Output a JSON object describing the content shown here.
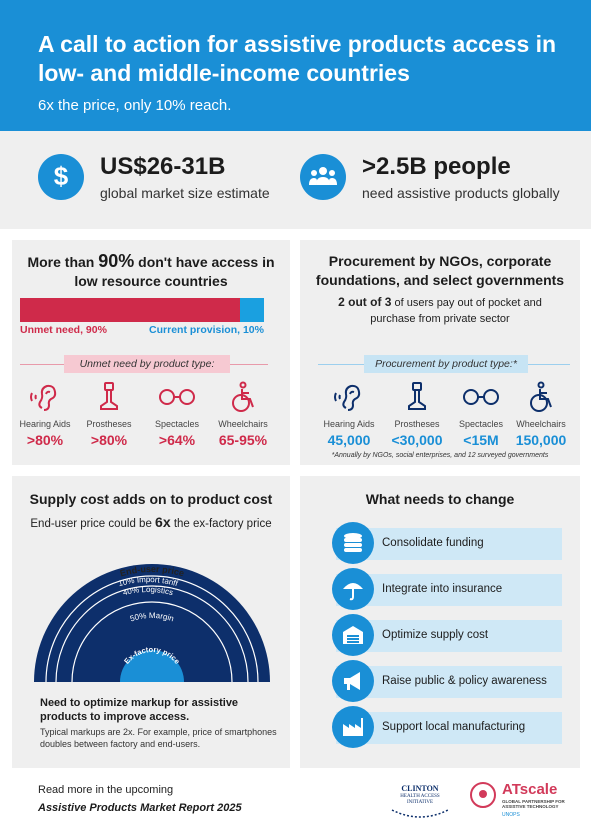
{
  "header": {
    "title": "A call to action for assistive products access in low- and middle-income countries",
    "subtitle": "6x the price, only 10% reach."
  },
  "stats": [
    {
      "icon": "dollar-icon",
      "value": "US$26-31B",
      "label": "global market size estimate"
    },
    {
      "icon": "people-icon",
      "value": ">2.5B people",
      "label": "need assistive products globally"
    }
  ],
  "access": {
    "title_pre": "More than ",
    "title_pct": "90%",
    "title_post": " don't have access in low resource countries",
    "unmet_fraction": 0.9,
    "unmet_label": "Unmet need, 90%",
    "current_label": "Current provision, 10%",
    "bytype_label": "Unmet need by product type:",
    "products": [
      {
        "name": "Hearing Aids",
        "value": ">80%",
        "icon": "ear-icon"
      },
      {
        "name": "Prostheses",
        "value": ">80%",
        "icon": "prosthesis-icon"
      },
      {
        "name": "Spectacles",
        "value": ">64%",
        "icon": "spectacles-icon"
      },
      {
        "name": "Wheelchairs",
        "value": "65-95%",
        "icon": "wheelchair-icon"
      }
    ]
  },
  "procurement": {
    "title": "Procurement by NGOs, corporate foundations, and select governments",
    "sub_bold": "2 out of 3",
    "sub_rest": " of users pay out of pocket and purchase from private sector",
    "bytype_label": "Procurement by product type:*",
    "products": [
      {
        "name": "Hearing Aids",
        "value": "45,000",
        "icon": "ear-icon"
      },
      {
        "name": "Prostheses",
        "value": "<30,000",
        "icon": "prosthesis-icon"
      },
      {
        "name": "Spectacles",
        "value": "<15M",
        "icon": "spectacles-icon"
      },
      {
        "name": "Wheelchairs",
        "value": "150,000",
        "icon": "wheelchair-icon"
      }
    ],
    "note": "*Annually by NGOs, social enterprises, and 12 surveyed governments"
  },
  "supply": {
    "title": "Supply cost adds on to product cost",
    "sub_pre": "End-user price could be ",
    "sub_bold": "6x",
    "sub_post": " the ex-factory price",
    "labels": {
      "end_user": "End-user price",
      "tariff": "10% Import tariff",
      "logistics": "40% Logistics",
      "margin": "50% Margin",
      "ex_factory": "Ex-factory price"
    },
    "footnote_bold": "Need to optimize markup for assistive products to improve access.",
    "footnote": "Typical markups are 2x. For example, price of smartphones doubles between factory and end-users."
  },
  "change": {
    "title": "What needs to change",
    "items": [
      {
        "label": "Consolidate funding",
        "icon": "coins-icon"
      },
      {
        "label": "Integrate into insurance",
        "icon": "umbrella-icon"
      },
      {
        "label": "Optimize supply cost",
        "icon": "warehouse-icon"
      },
      {
        "label": "Raise public & policy awareness",
        "icon": "megaphone-icon"
      },
      {
        "label": "Support local manufacturing",
        "icon": "factory-icon"
      }
    ]
  },
  "footer": {
    "line1": "Read more in the upcoming",
    "line2": "Assistive Products Market Report 2025",
    "logo1_line1": "CLINTON",
    "logo1_line2": "HEALTH ACCESS",
    "logo1_line3": "INITIATIVE",
    "logo2_name": "ATscale",
    "logo2_line1": "GLOBAL PARTNERSHIP FOR",
    "logo2_line2": "ASSISTIVE TECHNOLOGY",
    "logo2_line3": "UNOPS"
  },
  "colors": {
    "brand_blue": "#1a8fd6",
    "unmet_red": "#cf2a4a",
    "navy": "#0d2f6b",
    "light_blue": "#cfe8f6"
  }
}
